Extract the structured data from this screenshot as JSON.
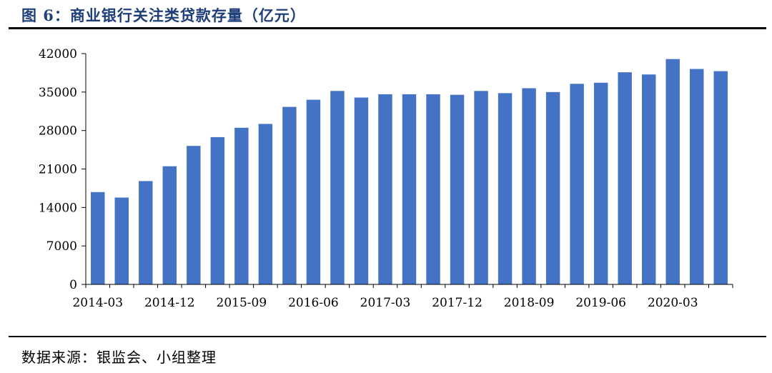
{
  "figure": {
    "title": "图 6：商业银行关注类贷款存量（亿元）",
    "source": "数据来源：银监会、小组整理"
  },
  "chart_data": {
    "type": "bar",
    "title": "商业银行关注类贷款存量（亿元）",
    "xlabel": "",
    "ylabel": "",
    "ylim": [
      0,
      42000
    ],
    "yticks": [
      0,
      7000,
      14000,
      21000,
      28000,
      35000,
      42000
    ],
    "grid": false,
    "legend": "none",
    "bar_color": "#4472c4",
    "categories": [
      "2014-03",
      "2014-06",
      "2014-09",
      "2014-12",
      "2015-03",
      "2015-06",
      "2015-09",
      "2015-12",
      "2016-03",
      "2016-06",
      "2016-09",
      "2016-12",
      "2017-03",
      "2017-06",
      "2017-09",
      "2017-12",
      "2018-03",
      "2018-06",
      "2018-09",
      "2018-12",
      "2019-03",
      "2019-06",
      "2019-09",
      "2019-12",
      "2020-03",
      "2020-06",
      "2020-09"
    ],
    "xtick_labels": [
      "2014-03",
      "2014-12",
      "2015-09",
      "2016-06",
      "2017-03",
      "2017-12",
      "2018-09",
      "2019-06",
      "2020-03"
    ],
    "values": [
      16800,
      15800,
      18800,
      21500,
      25200,
      26800,
      28500,
      29200,
      32300,
      33600,
      35200,
      34000,
      34600,
      34600,
      34600,
      34500,
      35200,
      34800,
      35700,
      35000,
      36500,
      36700,
      38600,
      38200,
      41000,
      39200,
      38800
    ]
  }
}
